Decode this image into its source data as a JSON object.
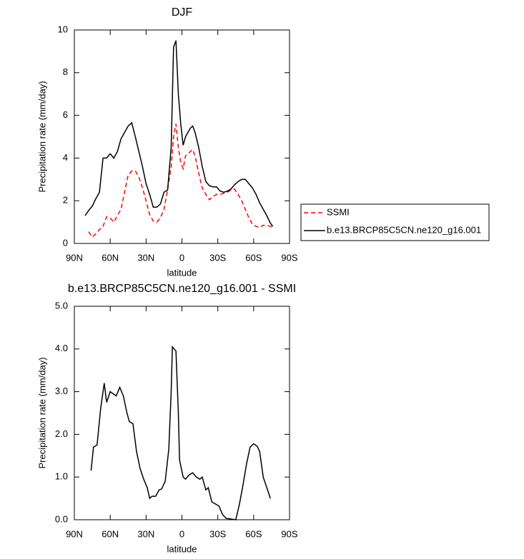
{
  "chart_data": [
    {
      "type": "line",
      "title": "DJF",
      "x_label": "latitude",
      "y_label": "Precipitation rate (mm/day)",
      "x": [
        81,
        78,
        75,
        72,
        69,
        66,
        63,
        60,
        57,
        54,
        51,
        48,
        45,
        42,
        39,
        36,
        33,
        30,
        27,
        24,
        21,
        18,
        15,
        12,
        9,
        7,
        5,
        3,
        1,
        -1,
        -3,
        -5,
        -7,
        -9,
        -11,
        -14,
        -17,
        -20,
        -23,
        -26,
        -29,
        -32,
        -35,
        -38,
        -41,
        -44,
        -47,
        -50,
        -53,
        -56,
        -59,
        -62,
        -65,
        -68,
        -71,
        -74,
        -76
      ],
      "series": [
        {
          "name": "SSMI",
          "color": "#ff0000",
          "dashed": true,
          "values": [
            null,
            0.55,
            0.3,
            0.45,
            0.65,
            0.8,
            1.25,
            1.2,
            1.0,
            1.3,
            1.6,
            2.4,
            3.2,
            3.4,
            3.4,
            3.1,
            2.6,
            2.0,
            1.35,
            1.05,
            1.0,
            1.2,
            1.6,
            2.5,
            3.6,
            5.0,
            5.6,
            4.5,
            3.8,
            3.5,
            4.1,
            4.2,
            4.3,
            4.4,
            4.1,
            3.3,
            2.6,
            2.3,
            2.05,
            2.2,
            2.3,
            2.3,
            2.35,
            2.4,
            2.5,
            2.55,
            2.3,
            2.0,
            1.6,
            1.2,
            0.9,
            0.8,
            0.75,
            0.85,
            0.85,
            0.8,
            0.75
          ]
        },
        {
          "name": "b.e13.BRCP85C5CN.ne120_g16.001",
          "color": "#000000",
          "dashed": false,
          "values": [
            1.3,
            1.55,
            1.75,
            2.1,
            2.4,
            4.0,
            4.0,
            4.2,
            4.0,
            4.3,
            4.9,
            5.2,
            5.5,
            5.65,
            5.0,
            4.3,
            3.6,
            2.8,
            2.3,
            1.7,
            1.7,
            1.85,
            2.4,
            2.5,
            4.5,
            9.2,
            9.5,
            7.0,
            5.6,
            4.6,
            5.0,
            5.2,
            5.4,
            5.5,
            5.2,
            4.5,
            3.6,
            2.9,
            2.7,
            2.65,
            2.65,
            2.45,
            2.4,
            2.45,
            2.55,
            2.75,
            2.9,
            3.0,
            3.0,
            2.8,
            2.6,
            2.3,
            1.9,
            1.6,
            1.3,
            0.95,
            0.8
          ]
        }
      ],
      "xlim": [
        90,
        -90
      ],
      "xticks": [
        {
          "value": 90,
          "label": "90N"
        },
        {
          "value": 60,
          "label": "60N"
        },
        {
          "value": 30,
          "label": "30N"
        },
        0,
        {
          "value": -30,
          "label": "30S"
        },
        {
          "value": -60,
          "label": "60S"
        },
        {
          "value": -90,
          "label": "90S"
        }
      ],
      "ylim": [
        0,
        10
      ],
      "yticks": [
        0,
        2,
        4,
        6,
        8,
        10
      ],
      "legend": "right"
    },
    {
      "type": "line",
      "title": "b.e13.BRCP85C5CN.ne120_g16.001 - SSMI",
      "x_label": "latitude",
      "y_label": "Precipitation rate (mm/day)",
      "x": [
        76,
        74,
        71,
        68,
        65,
        63,
        60,
        55,
        52,
        49,
        46,
        44,
        41,
        38,
        35,
        32,
        29,
        27,
        25,
        22,
        19,
        17,
        14,
        11,
        9,
        8,
        5,
        3,
        2,
        -1,
        -3,
        -6,
        -9,
        -12,
        -15,
        -17,
        -20,
        -22,
        -25,
        -28,
        -31,
        -34,
        -37,
        -40,
        -45,
        -48,
        -51,
        -54,
        -57,
        -60,
        -63,
        -65,
        -68,
        -71,
        -74
      ],
      "series": [
        {
          "color": "#000000",
          "dashed": false,
          "values": [
            1.15,
            1.7,
            1.75,
            2.6,
            3.2,
            2.75,
            3.0,
            2.9,
            3.1,
            2.9,
            2.5,
            2.3,
            2.25,
            1.6,
            1.2,
            0.95,
            0.75,
            0.5,
            0.55,
            0.55,
            0.7,
            0.72,
            0.9,
            1.65,
            3.0,
            4.05,
            3.95,
            2.5,
            1.4,
            1.0,
            0.95,
            1.05,
            1.1,
            1.0,
            0.95,
            1.0,
            0.7,
            0.75,
            0.42,
            0.37,
            0.32,
            0.12,
            0.03,
            0.02,
            0.0,
            0.35,
            0.8,
            1.3,
            1.7,
            1.78,
            1.72,
            1.6,
            1.0,
            0.75,
            0.5
          ]
        }
      ],
      "xlim": [
        90,
        -90
      ],
      "xticks": [
        {
          "value": 90,
          "label": "90N"
        },
        {
          "value": 60,
          "label": "60N"
        },
        {
          "value": 30,
          "label": "30N"
        },
        0,
        {
          "value": -30,
          "label": "30S"
        },
        {
          "value": -60,
          "label": "60S"
        },
        {
          "value": -90,
          "label": "90S"
        }
      ],
      "ylim": [
        0,
        5
      ],
      "yticks": [
        {
          "value": 0,
          "label": "0.0"
        },
        {
          "value": 1,
          "label": "1.0"
        },
        {
          "value": 2,
          "label": "2.0"
        },
        {
          "value": 3,
          "label": "3.0"
        },
        {
          "value": 4,
          "label": "4.0"
        },
        {
          "value": 5,
          "label": "5.0"
        }
      ]
    }
  ]
}
